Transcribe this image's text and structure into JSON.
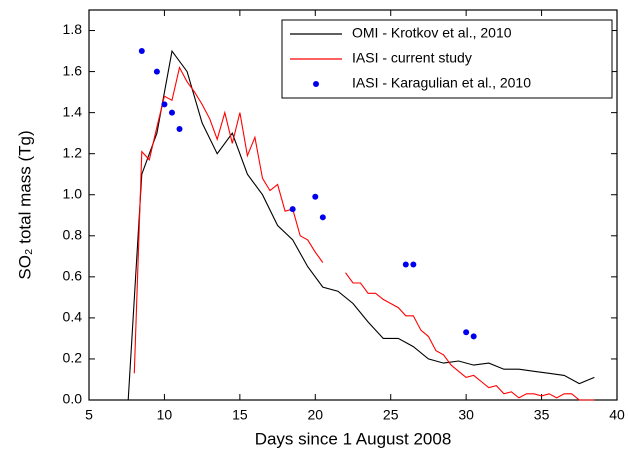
{
  "chart_data": {
    "type": "line",
    "x_label": "Days since 1 August 2008",
    "y_label": "SO₂ total mass (Tg)",
    "xlim": [
      5,
      40
    ],
    "xticks": [
      5,
      10,
      15,
      20,
      25,
      30,
      35,
      40
    ],
    "ylim": [
      0,
      1.9
    ],
    "yticks": [
      {
        "value": 0,
        "label": "0.0"
      },
      0.2,
      0.4,
      0.6,
      0.8,
      {
        "value": 1,
        "label": "1.0"
      },
      1.2,
      1.4,
      1.6,
      1.8
    ],
    "legend": "upper right",
    "series": [
      {
        "name": "OMI - Krotkov et al., 2010",
        "color": "#000000",
        "style": "line",
        "x": [
          7.6,
          8.5,
          9.5,
          10.5,
          11.5,
          12.5,
          13.5,
          14.5,
          15.5,
          16.5,
          17.5,
          18.5,
          19.5,
          20.5,
          21.5,
          22.5,
          23.5,
          24.5,
          25.5,
          26.5,
          27.5,
          28.5,
          29.5,
          30.5,
          31.5,
          32.5,
          33.5,
          34.5,
          35.5,
          36.5,
          37.5,
          38.5
        ],
        "values": [
          0,
          1.1,
          1.3,
          1.7,
          1.6,
          1.35,
          1.2,
          1.3,
          1.1,
          1.0,
          0.85,
          0.78,
          0.65,
          0.55,
          0.53,
          0.47,
          0.38,
          0.3,
          0.3,
          0.26,
          0.2,
          0.18,
          0.19,
          0.17,
          0.18,
          0.15,
          0.15,
          0.14,
          0.13,
          0.12,
          0.08,
          0.11
        ]
      },
      {
        "name": "IASI - current study",
        "color": "#ff0000",
        "style": "line",
        "x": [
          8,
          8.5,
          9,
          9.5,
          10,
          10.5,
          11,
          11.5,
          12,
          12.5,
          13,
          13.5,
          14,
          14.5,
          15,
          15.5,
          16,
          16.5,
          17,
          17.5,
          18,
          18.5,
          19,
          19.5,
          20,
          20.5,
          21,
          22,
          22.5,
          23,
          23.5,
          24,
          24.5,
          25,
          25.5,
          26,
          26.5,
          27,
          27.5,
          28,
          28.5,
          29,
          29.5,
          30,
          30.5,
          31,
          31.5,
          32,
          32.5,
          33,
          33.5,
          34,
          34.5,
          35,
          35.5,
          36,
          36.5,
          37,
          37.5,
          38,
          38.5
        ],
        "values": [
          0.13,
          1.21,
          1.17,
          1.33,
          1.48,
          1.46,
          1.62,
          1.55,
          1.5,
          1.44,
          1.37,
          1.27,
          1.4,
          1.25,
          1.4,
          1.19,
          1.28,
          1.08,
          1.02,
          1.05,
          0.92,
          0.93,
          0.8,
          0.78,
          0.72,
          0.67,
          null,
          0.62,
          0.57,
          0.57,
          0.52,
          0.52,
          0.49,
          0.47,
          0.45,
          0.41,
          0.41,
          0.34,
          0.31,
          0.24,
          0.22,
          0.17,
          0.14,
          0.11,
          0.12,
          0.09,
          0.06,
          0.07,
          0.03,
          0.04,
          0.01,
          0.03,
          0.03,
          0.02,
          0.03,
          0.01,
          0.03,
          0.03,
          0,
          0,
          0
        ]
      },
      {
        "name": "IASI - Karagulian et al., 2010",
        "color": "#0000ee",
        "style": "marker",
        "x": [
          8.5,
          9.5,
          10,
          10.5,
          11,
          18.5,
          20,
          20.5,
          26,
          26.5,
          30,
          30.5
        ],
        "values": [
          1.7,
          1.6,
          1.44,
          1.4,
          1.32,
          0.93,
          0.99,
          0.89,
          0.66,
          0.66,
          0.33,
          0.31
        ]
      }
    ]
  }
}
